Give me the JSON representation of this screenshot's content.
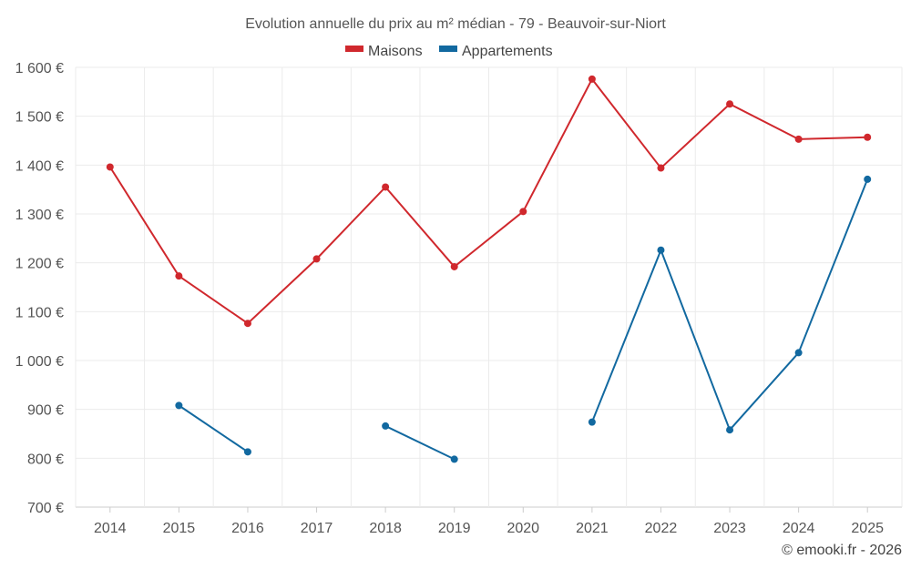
{
  "chart_data": {
    "type": "line",
    "title": "Evolution annuelle du prix au m² médian - 79 - Beauvoir-sur-Niort",
    "categories": [
      "2014",
      "2015",
      "2016",
      "2017",
      "2018",
      "2019",
      "2020",
      "2021",
      "2022",
      "2023",
      "2024",
      "2025"
    ],
    "ylim": [
      700,
      1600
    ],
    "yticks": [
      700,
      800,
      900,
      1000,
      1100,
      1200,
      1300,
      1400,
      1500,
      1600
    ],
    "ytick_labels": [
      "700 €",
      "800 €",
      "900 €",
      "1 000 €",
      "1 100 €",
      "1 200 €",
      "1 300 €",
      "1 400 €",
      "1 500 €",
      "1 600 €"
    ],
    "grid": true,
    "legend_position": "top-center",
    "series": [
      {
        "name": "Maisons",
        "color": "#d0282d",
        "values": [
          1396,
          1173,
          1076,
          1208,
          1355,
          1192,
          1305,
          1576,
          1394,
          1525,
          1453,
          1457
        ]
      },
      {
        "name": "Appartements",
        "color": "#1269a0",
        "values": [
          null,
          908,
          813,
          null,
          866,
          798,
          null,
          874,
          1226,
          858,
          1016,
          1371
        ]
      }
    ],
    "credit": "© emooki.fr - 2026"
  }
}
